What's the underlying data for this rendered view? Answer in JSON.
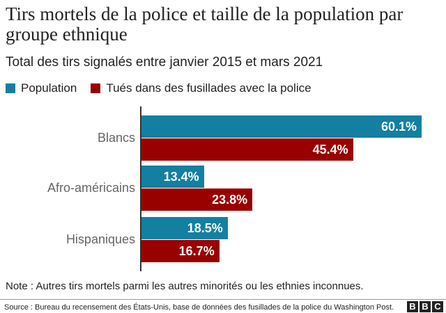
{
  "title": "Tirs mortels de la police et taille de la population par groupe ethnique",
  "subtitle": "Total des tirs signalés entre janvier 2015 et mars 2021",
  "note": "Note : Autres tirs mortels parmi les autres minorités ou les ethnies inconnues.",
  "source": "Source : Bureau du recensement des États-Unis, base de données des fusillades de la police du Washington Post.",
  "logo": "BBC",
  "chart_data": {
    "type": "bar",
    "orientation": "horizontal",
    "categories": [
      "Blancs",
      "Afro-américains",
      "Hispaniques"
    ],
    "series": [
      {
        "name": "Population",
        "color": "#1380A1",
        "values": [
          60.1,
          13.4,
          18.5
        ],
        "labels": [
          "60.1%",
          "13.4%",
          "18.5%"
        ]
      },
      {
        "name": "Tués dans des fusillades avec la police",
        "color": "#990000",
        "values": [
          45.4,
          23.8,
          16.7
        ],
        "labels": [
          "45.4%",
          "23.8%",
          "16.7%"
        ]
      }
    ],
    "legend": "top-left",
    "grid": false,
    "unit": "%"
  }
}
